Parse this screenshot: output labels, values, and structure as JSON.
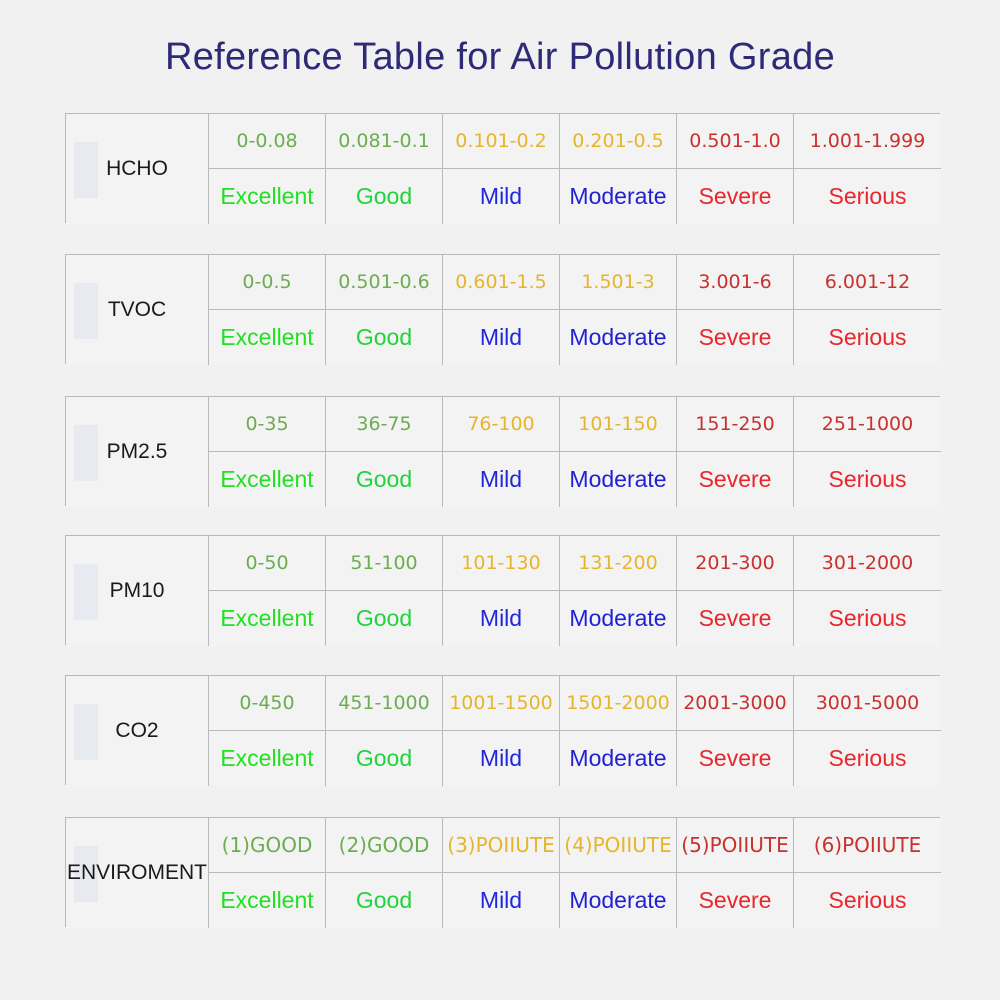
{
  "title": "Reference Table for Air Pollution Grade",
  "colors": {
    "excellent": "#22e022",
    "good": "#1fd43a",
    "mild": "#2028d8",
    "moderate": "#2121d2",
    "severe": "#e8262b",
    "serious": "#e8262b",
    "range_green": "#6cad50",
    "range_yellow": "#e7b52a",
    "range_red": "#c8322e",
    "title": "#2e2a78"
  },
  "grades": [
    "Excellent",
    "Good",
    "Mild",
    "Moderate",
    "Severe",
    "Serious"
  ],
  "rows": [
    {
      "pollutant": "HCHO",
      "ranges": [
        "0-0.08",
        "0.081-0.1",
        "0.101-0.2",
        "0.201-0.5",
        "0.501-1.0",
        "1.001-1.999"
      ]
    },
    {
      "pollutant": "TVOC",
      "ranges": [
        "0-0.5",
        "0.501-0.6",
        "0.601-1.5",
        "1.501-3",
        "3.001-6",
        "6.001-12"
      ]
    },
    {
      "pollutant": "PM2.5",
      "ranges": [
        "0-35",
        "36-75",
        "76-100",
        "101-150",
        "151-250",
        "251-1000"
      ]
    },
    {
      "pollutant": "PM10",
      "ranges": [
        "0-50",
        "51-100",
        "101-130",
        "131-200",
        "201-300",
        "301-2000"
      ]
    },
    {
      "pollutant": "CO2",
      "ranges": [
        "0-450",
        "451-1000",
        "1001-1500",
        "1501-2000",
        "2001-3000",
        "3001-5000"
      ]
    },
    {
      "pollutant": "ENVIROMENT",
      "ranges": [
        "(1)GOOD",
        "(2)GOOD",
        "(3)POIIUTE",
        "(4)POIIUTE",
        "(5)POIIUTE",
        "(6)POIIUTE"
      ]
    }
  ]
}
